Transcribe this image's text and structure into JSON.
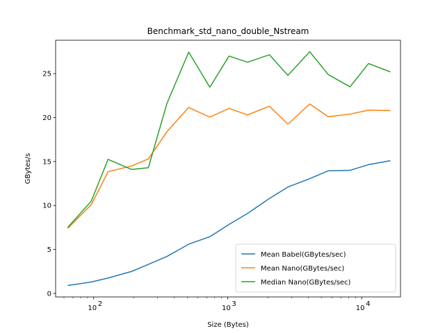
{
  "chart_data": {
    "type": "line",
    "title": "Benchmark_std_nano_double_Nstream",
    "xlabel": "Size (Bytes)",
    "ylabel": "GBytes/s",
    "x_scale": "log",
    "xlim": [
      52,
      19500
    ],
    "ylim": [
      -0.4,
      28.8
    ],
    "x_ticks": [
      {
        "value": 100,
        "base": "10",
        "exp": "2"
      },
      {
        "value": 1000,
        "base": "10",
        "exp": "3"
      },
      {
        "value": 10000,
        "base": "10",
        "exp": "4"
      }
    ],
    "y_ticks": [
      0,
      5,
      10,
      15,
      20,
      25
    ],
    "grid": false,
    "legend_position": "lower-right",
    "x": [
      64,
      96,
      128,
      192,
      256,
      352,
      512,
      736,
      1024,
      1408,
      2048,
      2816,
      4096,
      5632,
      8192,
      11264,
      16384
    ],
    "series": [
      {
        "name": "Mean Babel(GBytes/sec)",
        "color": "#1f77b4",
        "values": [
          0.9,
          1.3,
          1.75,
          2.5,
          3.3,
          4.2,
          5.6,
          6.45,
          7.85,
          9.1,
          10.8,
          12.1,
          13.05,
          13.95,
          14.0,
          14.65,
          15.1
        ]
      },
      {
        "name": "Mean Nano(GBytes/sec)",
        "color": "#ff7f0e",
        "values": [
          7.4,
          10.1,
          13.85,
          14.5,
          15.3,
          18.4,
          21.15,
          20.05,
          21.05,
          20.3,
          21.3,
          19.25,
          21.55,
          20.1,
          20.4,
          20.85,
          20.8
        ]
      },
      {
        "name": "Median Nano(GBytes/sec)",
        "color": "#2ca02c",
        "values": [
          7.5,
          10.5,
          15.25,
          14.1,
          14.3,
          21.6,
          27.45,
          23.45,
          27.0,
          26.3,
          27.15,
          24.8,
          27.5,
          24.9,
          23.5,
          26.15,
          25.2
        ]
      }
    ]
  }
}
